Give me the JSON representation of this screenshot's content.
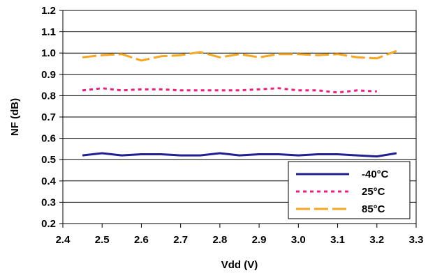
{
  "chart_data": {
    "type": "line",
    "xlabel": "Vdd (V)",
    "ylabel": "NF (dB)",
    "xlim": [
      2.4,
      3.3
    ],
    "ylim": [
      0.2,
      1.2
    ],
    "xticks": [
      "2.4",
      "2.5",
      "2.6",
      "2.7",
      "2.8",
      "2.9",
      "3.0",
      "3.1",
      "3.2",
      "3.3"
    ],
    "yticks": [
      "0.2",
      "0.3",
      "0.4",
      "0.5",
      "0.6",
      "0.7",
      "0.8",
      "0.9",
      "1.0",
      "1.1",
      "1.2"
    ],
    "grid": "horizontal",
    "legend_position": "bottom-right",
    "series": [
      {
        "name": "-40°C",
        "color": "#1f1f8f",
        "dash": "solid",
        "x": [
          2.45,
          2.5,
          2.55,
          2.6,
          2.65,
          2.7,
          2.75,
          2.8,
          2.85,
          2.9,
          2.95,
          3.0,
          3.05,
          3.1,
          3.15,
          3.2,
          3.25
        ],
        "y": [
          0.52,
          0.53,
          0.52,
          0.525,
          0.525,
          0.52,
          0.52,
          0.53,
          0.52,
          0.525,
          0.525,
          0.52,
          0.525,
          0.525,
          0.52,
          0.515,
          0.53
        ]
      },
      {
        "name": "25°C",
        "color": "#e6217f",
        "dash": "dotted",
        "x": [
          2.45,
          2.5,
          2.55,
          2.6,
          2.65,
          2.7,
          2.75,
          2.8,
          2.85,
          2.9,
          2.95,
          3.0,
          3.05,
          3.1,
          3.15,
          3.2
        ],
        "y": [
          0.825,
          0.835,
          0.825,
          0.83,
          0.83,
          0.825,
          0.825,
          0.825,
          0.825,
          0.83,
          0.835,
          0.825,
          0.825,
          0.815,
          0.825,
          0.82
        ]
      },
      {
        "name": "85°C",
        "color": "#f5a623",
        "dash": "dashed",
        "x": [
          2.45,
          2.5,
          2.55,
          2.6,
          2.65,
          2.7,
          2.75,
          2.8,
          2.85,
          2.9,
          2.95,
          3.0,
          3.05,
          3.1,
          3.15,
          3.2,
          3.25
        ],
        "y": [
          0.98,
          0.99,
          0.995,
          0.965,
          0.985,
          0.99,
          1.005,
          0.98,
          0.995,
          0.98,
          0.995,
          0.995,
          0.99,
          0.995,
          0.98,
          0.975,
          1.01
        ]
      }
    ]
  }
}
